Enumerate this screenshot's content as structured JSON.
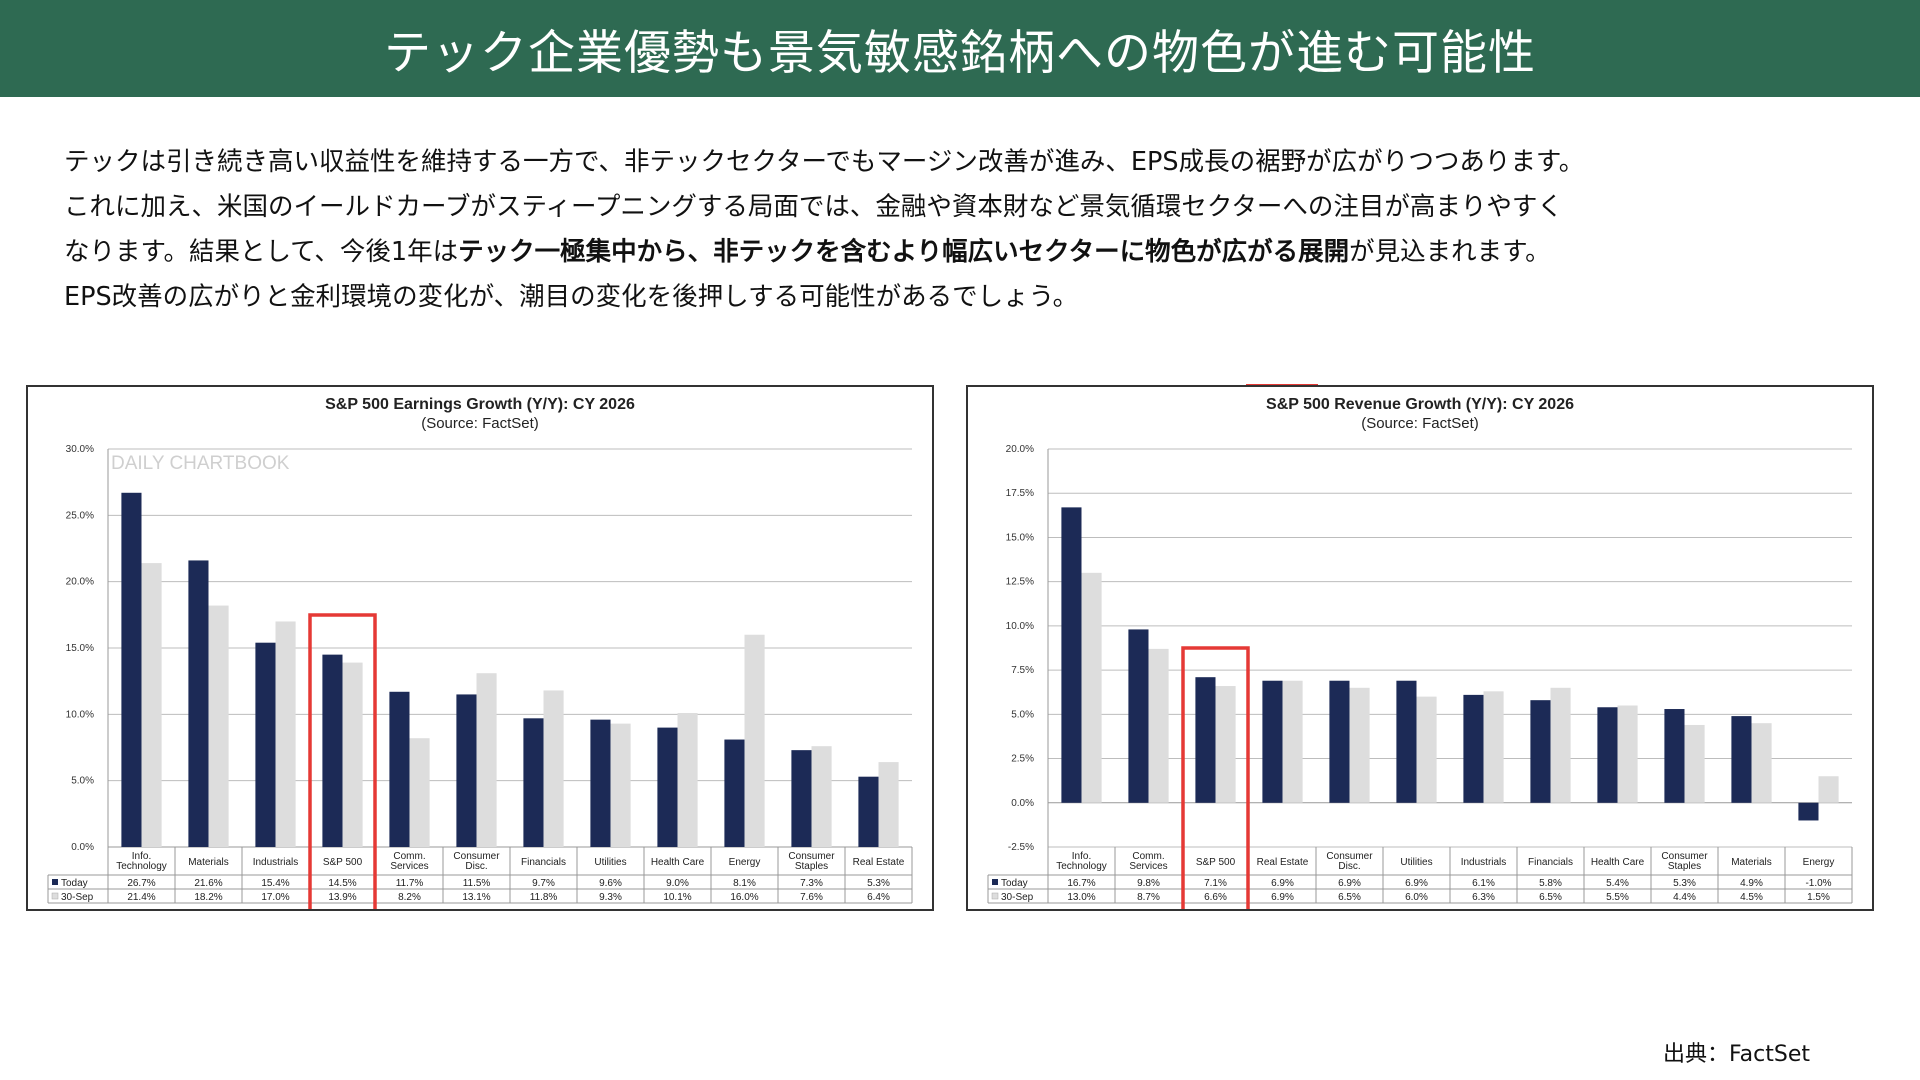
{
  "header": {
    "title": "テック企業優勢も景気敏感銘柄への物色が進む可能性"
  },
  "body": {
    "line1": "テックは引き続き高い収益性を維持する一方で、非テックセクターでもマージン改善が進み、EPS成長の裾野が広がりつつあります。",
    "line2": "これに加え、米国のイールドカーブがスティープニングする局面では、金融や資本財など景気循環セクターへの注目が高まりやすく",
    "line3_pre": "なります。結果として、今後1年は",
    "line3_bold": "テック一極集中から、非テックを含むより幅広いセクターに物色が広がる展開",
    "line3_post": "が見込まれます。",
    "line4": "EPS改善の広がりと金利環境の変化が、潮目の変化を後押しする可能性があるでしょう。"
  },
  "source_note": "出典：FactSet",
  "colors": {
    "header_bg": "#2e6a52",
    "today": "#1c2a56",
    "sep30": "#dddddd",
    "highlight": "#e53935"
  },
  "chart_data": [
    {
      "type": "bar",
      "title": "S&P 500 Earnings Growth (Y/Y): CY 2026",
      "subtitle": "(Source: FactSet)",
      "watermark": "DAILY CHARTBOOK",
      "categories": [
        "Info.\nTechnology",
        "Materials",
        "Industrials",
        "S&P 500",
        "Comm.\nServices",
        "Consumer\nDisc.",
        "Financials",
        "Utilities",
        "Health Care",
        "Energy",
        "Consumer\nStaples",
        "Real Estate"
      ],
      "series": [
        {
          "name": "Today",
          "values": [
            26.7,
            21.6,
            15.4,
            14.5,
            11.7,
            11.5,
            9.7,
            9.6,
            9.0,
            8.1,
            7.3,
            5.3
          ],
          "labels": [
            "26.7%",
            "21.6%",
            "15.4%",
            "14.5%",
            "11.7%",
            "11.5%",
            "9.7%",
            "9.6%",
            "9.0%",
            "8.1%",
            "7.3%",
            "5.3%"
          ]
        },
        {
          "name": "30-Sep",
          "values": [
            21.4,
            18.2,
            17.0,
            13.9,
            8.2,
            13.1,
            11.8,
            9.3,
            10.1,
            16.0,
            7.6,
            6.4
          ],
          "labels": [
            "21.4%",
            "18.2%",
            "17.0%",
            "13.9%",
            "8.2%",
            "13.1%",
            "11.8%",
            "9.3%",
            "10.1%",
            "16.0%",
            "7.6%",
            "6.4%"
          ]
        }
      ],
      "ylim": [
        0,
        30
      ],
      "yticks": [
        0,
        5,
        10,
        15,
        20,
        25,
        30
      ],
      "ytick_labels": [
        "0.0%",
        "5.0%",
        "10.0%",
        "15.0%",
        "20.0%",
        "25.0%",
        "30.0%"
      ],
      "highlight_category": "S&P 500",
      "grid": true,
      "legend": "data-table"
    },
    {
      "type": "bar",
      "title": "S&P 500 Revenue Growth (Y/Y): CY 2026",
      "subtitle": "(Source: FactSet)",
      "categories": [
        "Info.\nTechnology",
        "Comm.\nServices",
        "S&P 500",
        "Real Estate",
        "Consumer\nDisc.",
        "Utilities",
        "Industrials",
        "Financials",
        "Health Care",
        "Consumer\nStaples",
        "Materials",
        "Energy"
      ],
      "series": [
        {
          "name": "Today",
          "values": [
            16.7,
            9.8,
            7.1,
            6.9,
            6.9,
            6.9,
            6.1,
            5.8,
            5.4,
            5.3,
            4.9,
            -1.0
          ],
          "labels": [
            "16.7%",
            "9.8%",
            "7.1%",
            "6.9%",
            "6.9%",
            "6.9%",
            "6.1%",
            "5.8%",
            "5.4%",
            "5.3%",
            "4.9%",
            "-1.0%"
          ]
        },
        {
          "name": "30-Sep",
          "values": [
            13.0,
            8.7,
            6.6,
            6.9,
            6.5,
            6.0,
            6.3,
            6.5,
            5.5,
            4.4,
            4.5,
            1.5
          ],
          "labels": [
            "13.0%",
            "8.7%",
            "6.6%",
            "6.9%",
            "6.5%",
            "6.0%",
            "6.3%",
            "6.5%",
            "5.5%",
            "4.4%",
            "4.5%",
            "1.5%"
          ]
        }
      ],
      "ylim": [
        -2.5,
        20
      ],
      "yticks": [
        -2.5,
        0,
        2.5,
        5,
        7.5,
        10,
        12.5,
        15,
        17.5,
        20
      ],
      "ytick_labels": [
        "-2.5%",
        "0.0%",
        "2.5%",
        "5.0%",
        "7.5%",
        "10.0%",
        "12.5%",
        "15.0%",
        "17.5%",
        "20.0%"
      ],
      "highlight_category": "S&P 500",
      "grid": true,
      "legend": "data-table"
    }
  ]
}
